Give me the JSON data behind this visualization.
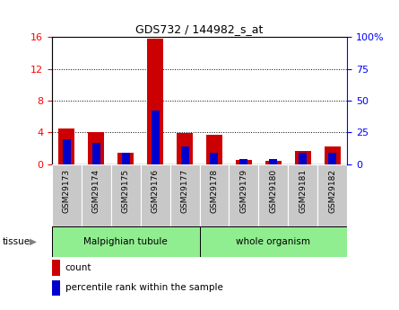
{
  "title": "GDS732 / 144982_s_at",
  "samples": [
    "GSM29173",
    "GSM29174",
    "GSM29175",
    "GSM29176",
    "GSM29177",
    "GSM29178",
    "GSM29179",
    "GSM29180",
    "GSM29181",
    "GSM29182"
  ],
  "count_values": [
    4.5,
    4.1,
    1.5,
    15.8,
    3.9,
    3.7,
    0.6,
    0.4,
    1.7,
    2.2
  ],
  "percentile_values": [
    20,
    17,
    9,
    42,
    14,
    9,
    4,
    4,
    9,
    9
  ],
  "malpighian_count": 5,
  "whole_count": 5,
  "malpighian_label": "Malpighian tubule",
  "whole_label": "whole organism",
  "count_color": "#CC0000",
  "percentile_color": "#0000CC",
  "ylim_left": [
    0,
    16
  ],
  "ylim_right": [
    0,
    100
  ],
  "yticks_left": [
    0,
    4,
    8,
    12,
    16
  ],
  "yticks_right": [
    0,
    25,
    50,
    75,
    100
  ],
  "tissue_label": "tissue",
  "legend_count": "count",
  "legend_percentile": "percentile rank within the sample",
  "tissue_bg_color": "#90EE90",
  "gray_color": "#C8C8C8",
  "bar_width": 0.55
}
